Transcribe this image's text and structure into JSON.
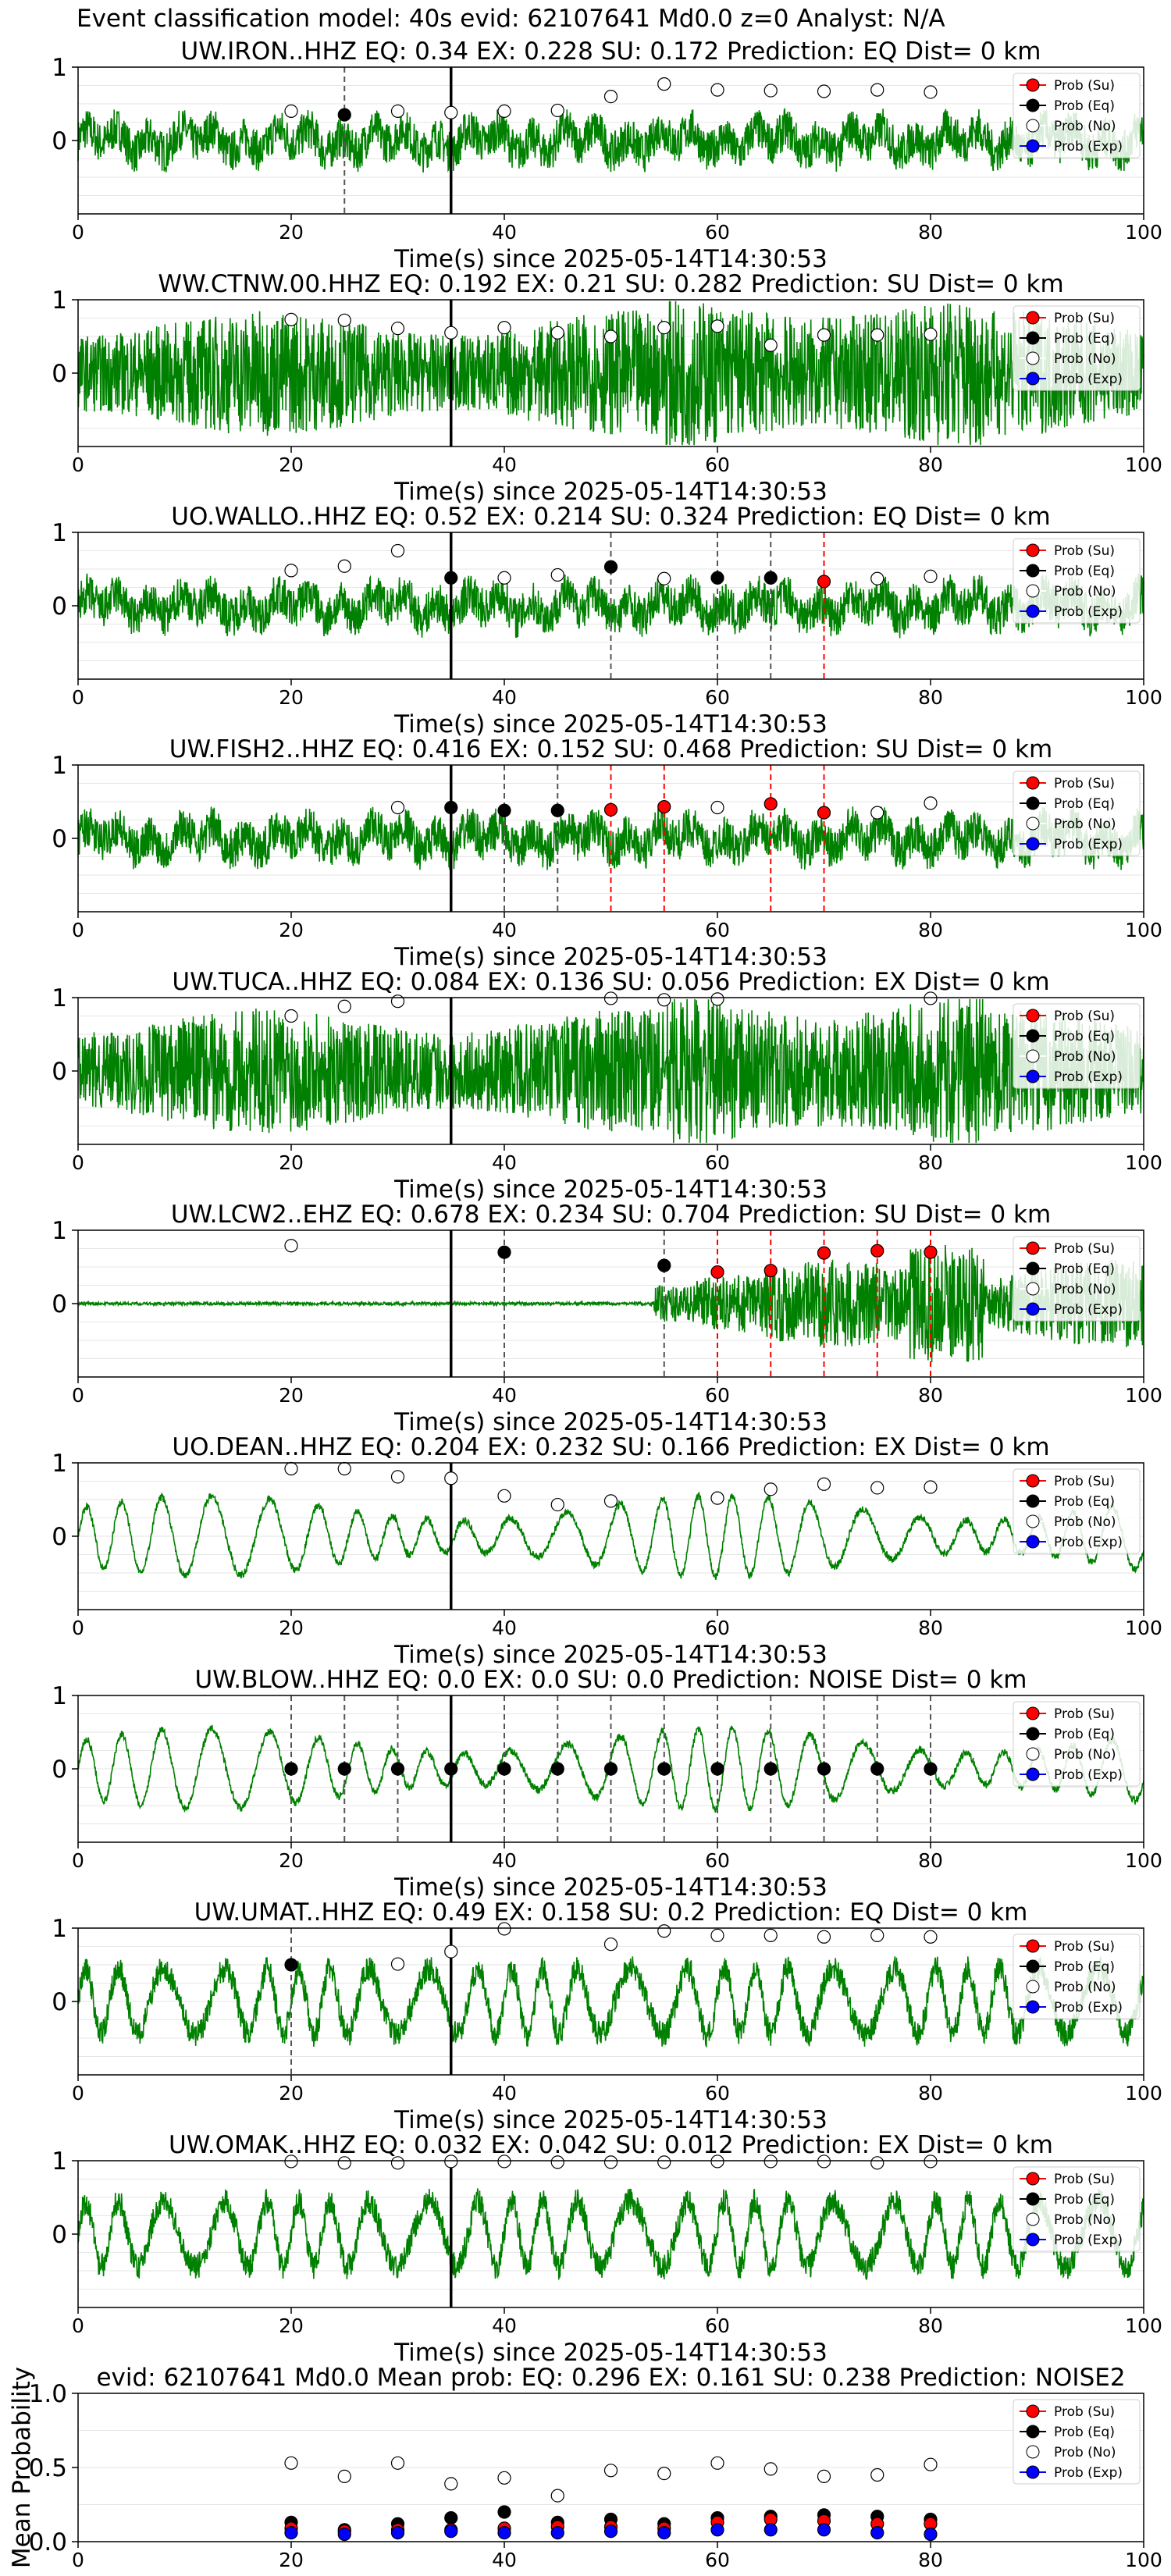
{
  "figure": {
    "title": "Event classification model: 40s evid: 62107641 Md0.0 z=0 Analyst: N/A"
  },
  "colors": {
    "waveform": "#008000",
    "su": "#ff0000",
    "eq": "#000000",
    "no": "#ffffff",
    "exp": "#0000ff",
    "pick_line": "#000000"
  },
  "legend": [
    "Prob (Su)",
    "Prob (Eq)",
    "Prob (No)",
    "Prob (Exp)"
  ],
  "chart_data": [
    {
      "type": "line",
      "title": "UW.IRON..HHZ   EQ: 0.34   EX: 0.228   SU: 0.172   Prediction: EQ    Dist= 0 km",
      "xlabel": "Time(s) since 2025-05-14T14:30:53",
      "xlim": [
        0,
        100
      ],
      "ylim": [
        -1,
        1
      ],
      "xticks": [
        0,
        20,
        40,
        60,
        80,
        100
      ],
      "yticks": [
        0,
        1
      ],
      "waveform_style": "noise",
      "pick_time": 35,
      "points": [
        {
          "x": 20,
          "y": 0.4,
          "c": "no"
        },
        {
          "x": 25,
          "y": 0.35,
          "c": "eq"
        },
        {
          "x": 30,
          "y": 0.4,
          "c": "no"
        },
        {
          "x": 35,
          "y": 0.38,
          "c": "no"
        },
        {
          "x": 40,
          "y": 0.4,
          "c": "no"
        },
        {
          "x": 45,
          "y": 0.41,
          "c": "no"
        },
        {
          "x": 50,
          "y": 0.6,
          "c": "no"
        },
        {
          "x": 55,
          "y": 0.77,
          "c": "no"
        },
        {
          "x": 60,
          "y": 0.69,
          "c": "no"
        },
        {
          "x": 65,
          "y": 0.68,
          "c": "no"
        },
        {
          "x": 70,
          "y": 0.67,
          "c": "no"
        },
        {
          "x": 75,
          "y": 0.69,
          "c": "no"
        },
        {
          "x": 80,
          "y": 0.66,
          "c": "no"
        }
      ],
      "dashed": [
        {
          "x": 25,
          "c": "eq"
        }
      ]
    },
    {
      "type": "line",
      "title": "WW.CTNW.00.HHZ   EQ: 0.192   EX: 0.21   SU: 0.282   Prediction: SU    Dist= 0 km",
      "xlabel": "Time(s) since 2025-05-14T14:30:53",
      "xlim": [
        0,
        100
      ],
      "ylim": [
        -1,
        1
      ],
      "xticks": [
        0,
        20,
        40,
        60,
        80,
        100
      ],
      "yticks": [
        0,
        1
      ],
      "waveform_style": "dense",
      "pick_time": 35,
      "points": [
        {
          "x": 20,
          "y": 0.73,
          "c": "no"
        },
        {
          "x": 25,
          "y": 0.72,
          "c": "no"
        },
        {
          "x": 30,
          "y": 0.61,
          "c": "no"
        },
        {
          "x": 35,
          "y": 0.55,
          "c": "no"
        },
        {
          "x": 40,
          "y": 0.62,
          "c": "no"
        },
        {
          "x": 45,
          "y": 0.55,
          "c": "no"
        },
        {
          "x": 50,
          "y": 0.5,
          "c": "no"
        },
        {
          "x": 55,
          "y": 0.62,
          "c": "no"
        },
        {
          "x": 60,
          "y": 0.64,
          "c": "no"
        },
        {
          "x": 65,
          "y": 0.38,
          "c": "no"
        },
        {
          "x": 70,
          "y": 0.52,
          "c": "no"
        },
        {
          "x": 75,
          "y": 0.52,
          "c": "no"
        },
        {
          "x": 80,
          "y": 0.53,
          "c": "no"
        }
      ],
      "dashed": []
    },
    {
      "type": "line",
      "title": "UO.WALLO..HHZ   EQ: 0.52   EX: 0.214   SU: 0.324   Prediction: EQ    Dist= 0 km",
      "xlabel": "Time(s) since 2025-05-14T14:30:53",
      "xlim": [
        0,
        100
      ],
      "ylim": [
        -1,
        1
      ],
      "xticks": [
        0,
        20,
        40,
        60,
        80,
        100
      ],
      "yticks": [
        0,
        1
      ],
      "waveform_style": "noise",
      "pick_time": 35,
      "points": [
        {
          "x": 20,
          "y": 0.48,
          "c": "no"
        },
        {
          "x": 25,
          "y": 0.54,
          "c": "no"
        },
        {
          "x": 30,
          "y": 0.75,
          "c": "no"
        },
        {
          "x": 35,
          "y": 0.38,
          "c": "eq"
        },
        {
          "x": 40,
          "y": 0.38,
          "c": "no"
        },
        {
          "x": 45,
          "y": 0.42,
          "c": "no"
        },
        {
          "x": 50,
          "y": 0.53,
          "c": "eq"
        },
        {
          "x": 55,
          "y": 0.37,
          "c": "no"
        },
        {
          "x": 60,
          "y": 0.38,
          "c": "eq"
        },
        {
          "x": 65,
          "y": 0.38,
          "c": "eq"
        },
        {
          "x": 70,
          "y": 0.33,
          "c": "su"
        },
        {
          "x": 75,
          "y": 0.37,
          "c": "no"
        },
        {
          "x": 80,
          "y": 0.4,
          "c": "no"
        }
      ],
      "dashed": [
        {
          "x": 50,
          "c": "eq"
        },
        {
          "x": 60,
          "c": "eq"
        },
        {
          "x": 65,
          "c": "eq"
        },
        {
          "x": 70,
          "c": "su"
        }
      ]
    },
    {
      "type": "line",
      "title": "UW.FISH2..HHZ   EQ: 0.416   EX: 0.152   SU: 0.468   Prediction: SU    Dist= 0 km",
      "xlabel": "Time(s) since 2025-05-14T14:30:53",
      "xlim": [
        0,
        100
      ],
      "ylim": [
        -1,
        1
      ],
      "xticks": [
        0,
        20,
        40,
        60,
        80,
        100
      ],
      "yticks": [
        0,
        1
      ],
      "waveform_style": "noise",
      "pick_time": 35,
      "points": [
        {
          "x": 30,
          "y": 0.42,
          "c": "no"
        },
        {
          "x": 35,
          "y": 0.42,
          "c": "eq"
        },
        {
          "x": 40,
          "y": 0.38,
          "c": "eq"
        },
        {
          "x": 45,
          "y": 0.38,
          "c": "eq"
        },
        {
          "x": 50,
          "y": 0.39,
          "c": "su"
        },
        {
          "x": 55,
          "y": 0.43,
          "c": "su"
        },
        {
          "x": 60,
          "y": 0.42,
          "c": "no"
        },
        {
          "x": 65,
          "y": 0.47,
          "c": "su"
        },
        {
          "x": 70,
          "y": 0.35,
          "c": "su"
        },
        {
          "x": 75,
          "y": 0.35,
          "c": "no"
        },
        {
          "x": 80,
          "y": 0.48,
          "c": "no"
        }
      ],
      "dashed": [
        {
          "x": 40,
          "c": "eq"
        },
        {
          "x": 45,
          "c": "eq"
        },
        {
          "x": 50,
          "c": "su"
        },
        {
          "x": 55,
          "c": "su"
        },
        {
          "x": 65,
          "c": "su"
        },
        {
          "x": 70,
          "c": "su"
        }
      ]
    },
    {
      "type": "line",
      "title": "UW.TUCA..HHZ   EQ: 0.084   EX: 0.136   SU: 0.056   Prediction: EX    Dist= 0 km",
      "xlabel": "Time(s) since 2025-05-14T14:30:53",
      "xlim": [
        0,
        100
      ],
      "ylim": [
        -1,
        1
      ],
      "xticks": [
        0,
        20,
        40,
        60,
        80,
        100
      ],
      "yticks": [
        0,
        1
      ],
      "waveform_style": "dense",
      "pick_time": 35,
      "points": [
        {
          "x": 20,
          "y": 0.75,
          "c": "no"
        },
        {
          "x": 25,
          "y": 0.88,
          "c": "no"
        },
        {
          "x": 30,
          "y": 0.95,
          "c": "no"
        },
        {
          "x": 50,
          "y": 0.99,
          "c": "no"
        },
        {
          "x": 55,
          "y": 0.97,
          "c": "no"
        },
        {
          "x": 60,
          "y": 0.98,
          "c": "no"
        },
        {
          "x": 80,
          "y": 0.99,
          "c": "no"
        }
      ],
      "dashed": []
    },
    {
      "type": "line",
      "title": "UW.LCW2..EHZ   EQ: 0.678   EX: 0.234   SU: 0.704   Prediction: SU    Dist= 0 km",
      "xlabel": "Time(s) since 2025-05-14T14:30:53",
      "xlim": [
        0,
        100
      ],
      "ylim": [
        -1,
        1
      ],
      "xticks": [
        0,
        20,
        40,
        60,
        80,
        100
      ],
      "yticks": [
        0,
        1
      ],
      "waveform_style": "quiet",
      "pick_time": 35,
      "points": [
        {
          "x": 20,
          "y": 0.79,
          "c": "no"
        },
        {
          "x": 40,
          "y": 0.7,
          "c": "eq"
        },
        {
          "x": 55,
          "y": 0.52,
          "c": "eq"
        },
        {
          "x": 60,
          "y": 0.43,
          "c": "su"
        },
        {
          "x": 65,
          "y": 0.45,
          "c": "su"
        },
        {
          "x": 70,
          "y": 0.69,
          "c": "su"
        },
        {
          "x": 75,
          "y": 0.72,
          "c": "su"
        },
        {
          "x": 80,
          "y": 0.7,
          "c": "su"
        }
      ],
      "dashed": [
        {
          "x": 40,
          "c": "eq"
        },
        {
          "x": 55,
          "c": "eq"
        },
        {
          "x": 60,
          "c": "su"
        },
        {
          "x": 65,
          "c": "su"
        },
        {
          "x": 70,
          "c": "su"
        },
        {
          "x": 75,
          "c": "su"
        },
        {
          "x": 80,
          "c": "su"
        }
      ]
    },
    {
      "type": "line",
      "title": "UO.DEAN..HHZ   EQ: 0.204   EX: 0.232   SU: 0.166   Prediction: EX    Dist= 0 km",
      "xlabel": "Time(s) since 2025-05-14T14:30:53",
      "xlim": [
        0,
        100
      ],
      "ylim": [
        -1,
        1
      ],
      "xticks": [
        0,
        20,
        40,
        60,
        80,
        100
      ],
      "yticks": [
        0,
        1
      ],
      "waveform_style": "wave",
      "pick_time": 35,
      "points": [
        {
          "x": 20,
          "y": 0.92,
          "c": "no"
        },
        {
          "x": 25,
          "y": 0.92,
          "c": "no"
        },
        {
          "x": 30,
          "y": 0.81,
          "c": "no"
        },
        {
          "x": 35,
          "y": 0.79,
          "c": "no"
        },
        {
          "x": 40,
          "y": 0.55,
          "c": "no"
        },
        {
          "x": 45,
          "y": 0.43,
          "c": "no"
        },
        {
          "x": 50,
          "y": 0.48,
          "c": "no"
        },
        {
          "x": 60,
          "y": 0.52,
          "c": "no"
        },
        {
          "x": 65,
          "y": 0.64,
          "c": "no"
        },
        {
          "x": 70,
          "y": 0.71,
          "c": "no"
        },
        {
          "x": 75,
          "y": 0.66,
          "c": "no"
        },
        {
          "x": 80,
          "y": 0.67,
          "c": "no"
        }
      ],
      "dashed": []
    },
    {
      "type": "line",
      "title": "UW.BLOW..HHZ   EQ: 0.0   EX: 0.0   SU: 0.0   Prediction: NOISE    Dist= 0 km",
      "xlabel": "Time(s) since 2025-05-14T14:30:53",
      "xlim": [
        0,
        100
      ],
      "ylim": [
        -1,
        1
      ],
      "xticks": [
        0,
        20,
        40,
        60,
        80,
        100
      ],
      "yticks": [
        0,
        1
      ],
      "waveform_style": "wave",
      "pick_time": 35,
      "points": [
        {
          "x": 20,
          "y": 0.0,
          "c": "eq"
        },
        {
          "x": 25,
          "y": 0.0,
          "c": "eq"
        },
        {
          "x": 30,
          "y": 0.0,
          "c": "eq"
        },
        {
          "x": 35,
          "y": 0.0,
          "c": "eq"
        },
        {
          "x": 40,
          "y": 0.0,
          "c": "eq"
        },
        {
          "x": 45,
          "y": 0.0,
          "c": "eq"
        },
        {
          "x": 50,
          "y": 0.0,
          "c": "eq"
        },
        {
          "x": 55,
          "y": 0.0,
          "c": "eq"
        },
        {
          "x": 60,
          "y": 0.0,
          "c": "eq"
        },
        {
          "x": 65,
          "y": 0.0,
          "c": "eq"
        },
        {
          "x": 70,
          "y": 0.0,
          "c": "eq"
        },
        {
          "x": 75,
          "y": 0.0,
          "c": "eq"
        },
        {
          "x": 80,
          "y": 0.0,
          "c": "eq"
        }
      ],
      "dashed": [
        {
          "x": 20,
          "c": "eq"
        },
        {
          "x": 25,
          "c": "eq"
        },
        {
          "x": 30,
          "c": "eq"
        },
        {
          "x": 40,
          "c": "eq"
        },
        {
          "x": 45,
          "c": "eq"
        },
        {
          "x": 50,
          "c": "eq"
        },
        {
          "x": 55,
          "c": "eq"
        },
        {
          "x": 60,
          "c": "eq"
        },
        {
          "x": 65,
          "c": "eq"
        },
        {
          "x": 70,
          "c": "eq"
        },
        {
          "x": 75,
          "c": "eq"
        },
        {
          "x": 80,
          "c": "eq"
        }
      ]
    },
    {
      "type": "line",
      "title": "UW.UMAT..HHZ   EQ: 0.49   EX: 0.158   SU: 0.2   Prediction: EQ    Dist= 0 km",
      "xlabel": "Time(s) since 2025-05-14T14:30:53",
      "xlim": [
        0,
        100
      ],
      "ylim": [
        -1,
        1
      ],
      "xticks": [
        0,
        20,
        40,
        60,
        80,
        100
      ],
      "yticks": [
        0,
        1
      ],
      "waveform_style": "wave_noise",
      "pick_time": 35,
      "points": [
        {
          "x": 20,
          "y": 0.5,
          "c": "eq"
        },
        {
          "x": 30,
          "y": 0.51,
          "c": "no"
        },
        {
          "x": 35,
          "y": 0.68,
          "c": "no"
        },
        {
          "x": 40,
          "y": 0.99,
          "c": "no"
        },
        {
          "x": 50,
          "y": 0.78,
          "c": "no"
        },
        {
          "x": 55,
          "y": 0.96,
          "c": "no"
        },
        {
          "x": 60,
          "y": 0.9,
          "c": "no"
        },
        {
          "x": 65,
          "y": 0.9,
          "c": "no"
        },
        {
          "x": 70,
          "y": 0.88,
          "c": "no"
        },
        {
          "x": 75,
          "y": 0.9,
          "c": "no"
        },
        {
          "x": 80,
          "y": 0.88,
          "c": "no"
        }
      ],
      "dashed": [
        {
          "x": 20,
          "c": "eq"
        }
      ]
    },
    {
      "type": "line",
      "title": "UW.OMAK..HHZ   EQ: 0.032   EX: 0.042   SU: 0.012   Prediction: EX    Dist= 0 km",
      "xlabel": "Time(s) since 2025-05-14T14:30:53",
      "xlim": [
        0,
        100
      ],
      "ylim": [
        -1,
        1
      ],
      "xticks": [
        0,
        20,
        40,
        60,
        80,
        100
      ],
      "yticks": [
        0,
        1
      ],
      "waveform_style": "wave_noise",
      "pick_time": 35,
      "points": [
        {
          "x": 20,
          "y": 0.99,
          "c": "no"
        },
        {
          "x": 25,
          "y": 0.97,
          "c": "no"
        },
        {
          "x": 30,
          "y": 0.97,
          "c": "no"
        },
        {
          "x": 35,
          "y": 0.99,
          "c": "no"
        },
        {
          "x": 40,
          "y": 0.99,
          "c": "no"
        },
        {
          "x": 45,
          "y": 0.98,
          "c": "no"
        },
        {
          "x": 50,
          "y": 0.98,
          "c": "no"
        },
        {
          "x": 55,
          "y": 0.98,
          "c": "no"
        },
        {
          "x": 60,
          "y": 0.99,
          "c": "no"
        },
        {
          "x": 65,
          "y": 0.99,
          "c": "no"
        },
        {
          "x": 70,
          "y": 0.99,
          "c": "no"
        },
        {
          "x": 75,
          "y": 0.97,
          "c": "no"
        },
        {
          "x": 80,
          "y": 0.99,
          "c": "no"
        }
      ],
      "dashed": []
    },
    {
      "type": "scatter",
      "title": "evid: 62107641  Md0.0   Mean prob:   EQ: 0.296   EX: 0.161   SU: 0.238   Prediction: NOISE2",
      "ylabel": "Mean Probability",
      "xlim": [
        0,
        100
      ],
      "ylim": [
        0,
        1
      ],
      "xticks": [
        0,
        20,
        40,
        60,
        80,
        100
      ],
      "yticks": [
        0,
        0.5,
        1.0
      ],
      "ytick_labels": [
        "0.0",
        "0.5",
        "1.0"
      ],
      "series": [
        {
          "name": "Prob (No)",
          "c": "no",
          "x": [
            20,
            25,
            30,
            35,
            40,
            45,
            50,
            55,
            60,
            65,
            70,
            75,
            80
          ],
          "values": [
            0.53,
            0.44,
            0.53,
            0.39,
            0.43,
            0.31,
            0.48,
            0.46,
            0.53,
            0.49,
            0.44,
            0.45,
            0.52
          ]
        },
        {
          "name": "Prob (Eq)",
          "c": "eq",
          "x": [
            20,
            25,
            30,
            35,
            40,
            45,
            50,
            55,
            60,
            65,
            70,
            75,
            80
          ],
          "values": [
            0.13,
            0.08,
            0.12,
            0.16,
            0.2,
            0.13,
            0.15,
            0.12,
            0.16,
            0.17,
            0.18,
            0.17,
            0.15
          ]
        },
        {
          "name": "Prob (Su)",
          "c": "su",
          "x": [
            20,
            25,
            30,
            35,
            40,
            45,
            50,
            55,
            60,
            65,
            70,
            75,
            80
          ],
          "values": [
            0.09,
            0.07,
            0.08,
            0.08,
            0.09,
            0.1,
            0.1,
            0.09,
            0.13,
            0.15,
            0.14,
            0.12,
            0.12
          ]
        },
        {
          "name": "Prob (Exp)",
          "c": "exp",
          "x": [
            20,
            25,
            30,
            35,
            40,
            45,
            50,
            55,
            60,
            65,
            70,
            75,
            80
          ],
          "values": [
            0.06,
            0.05,
            0.06,
            0.07,
            0.06,
            0.06,
            0.07,
            0.06,
            0.08,
            0.08,
            0.08,
            0.06,
            0.05
          ]
        }
      ]
    }
  ]
}
